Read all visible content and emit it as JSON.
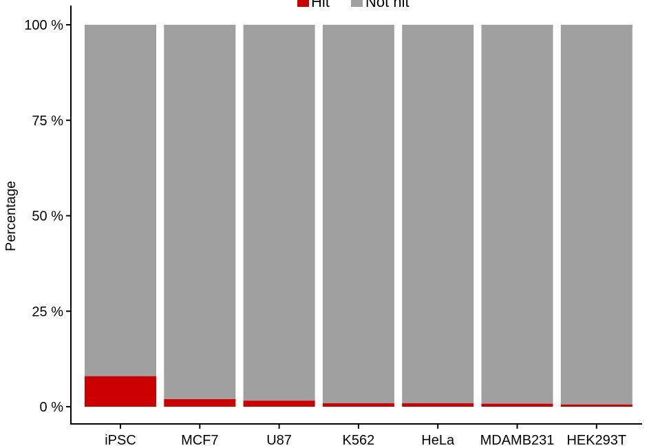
{
  "chart_data": {
    "type": "bar",
    "stacked": true,
    "percent_scale": true,
    "categories": [
      "iPSC",
      "MCF7",
      "U87",
      "K562",
      "HeLa",
      "MDAMB231",
      "HEK293T"
    ],
    "series": [
      {
        "name": "Hit",
        "values": [
          8.0,
          2.0,
          1.6,
          0.9,
          0.9,
          0.8,
          0.6
        ]
      },
      {
        "name": "Not hit",
        "values": [
          92.0,
          98.0,
          98.4,
          99.1,
          99.1,
          99.2,
          99.4
        ]
      }
    ],
    "colors": {
      "Hit": "#cc0000",
      "Not hit": "#a0a0a0"
    },
    "title": "",
    "xlabel": "",
    "ylabel": "Percentage",
    "ylim": [
      0,
      100
    ],
    "yticks": [
      0,
      25,
      50,
      75,
      100
    ],
    "ytick_labels": [
      "0 %",
      "25 %",
      "50 %",
      "75 %",
      "100 %"
    ],
    "grid": false,
    "legend": {
      "position": "top",
      "entries": [
        "Hit",
        "Not hit"
      ]
    }
  }
}
